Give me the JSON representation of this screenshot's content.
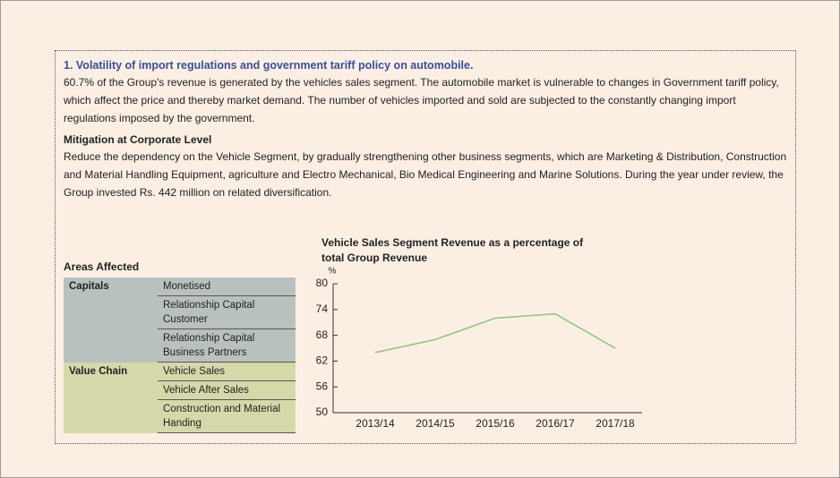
{
  "heading": "1. Volatility of import regulations and government tariff policy on automobile.",
  "paragraph": "60.7% of the Group's revenue is generated by the vehicles sales segment. The automobile market is vulnerable to changes in Government tariff policy, which affect the price and thereby market demand. The number of vehicles imported and sold are subjected to the constantly changing import regulations imposed by the government.",
  "mitigation": {
    "title": "Mitigation at Corporate Level",
    "text": "Reduce the dependency on the Vehicle Segment, by gradually strengthening other business segments, which are Marketing & Distribution, Construction and Material Handling Equipment, agriculture and Electro Mechanical, Bio Medical Engineering and Marine Solutions. During the year under review, the Group invested Rs. 442 million on related diversification."
  },
  "table": {
    "title": "Areas Affected",
    "groups": [
      {
        "name": "Capitals",
        "items": [
          "Monetised",
          "Relationship Capital Customer",
          "Relationship Capital Business Partners"
        ]
      },
      {
        "name": "Value Chain",
        "items": [
          "Vehicle Sales",
          "Vehicle After Sales",
          "Construction and Material Handing"
        ]
      }
    ]
  },
  "chart_data": {
    "type": "line",
    "title": "Vehicle Sales Segment Revenue as a percentage of total Group Revenue",
    "y_unit": "%",
    "categories": [
      "2013/14",
      "2014/15",
      "2015/16",
      "2016/17",
      "2017/18"
    ],
    "values": [
      64,
      67,
      72,
      73,
      65
    ],
    "color": "#8fc97a",
    "ylim": [
      50,
      80
    ],
    "yticks": [
      50,
      56,
      62,
      68,
      74,
      80
    ]
  }
}
